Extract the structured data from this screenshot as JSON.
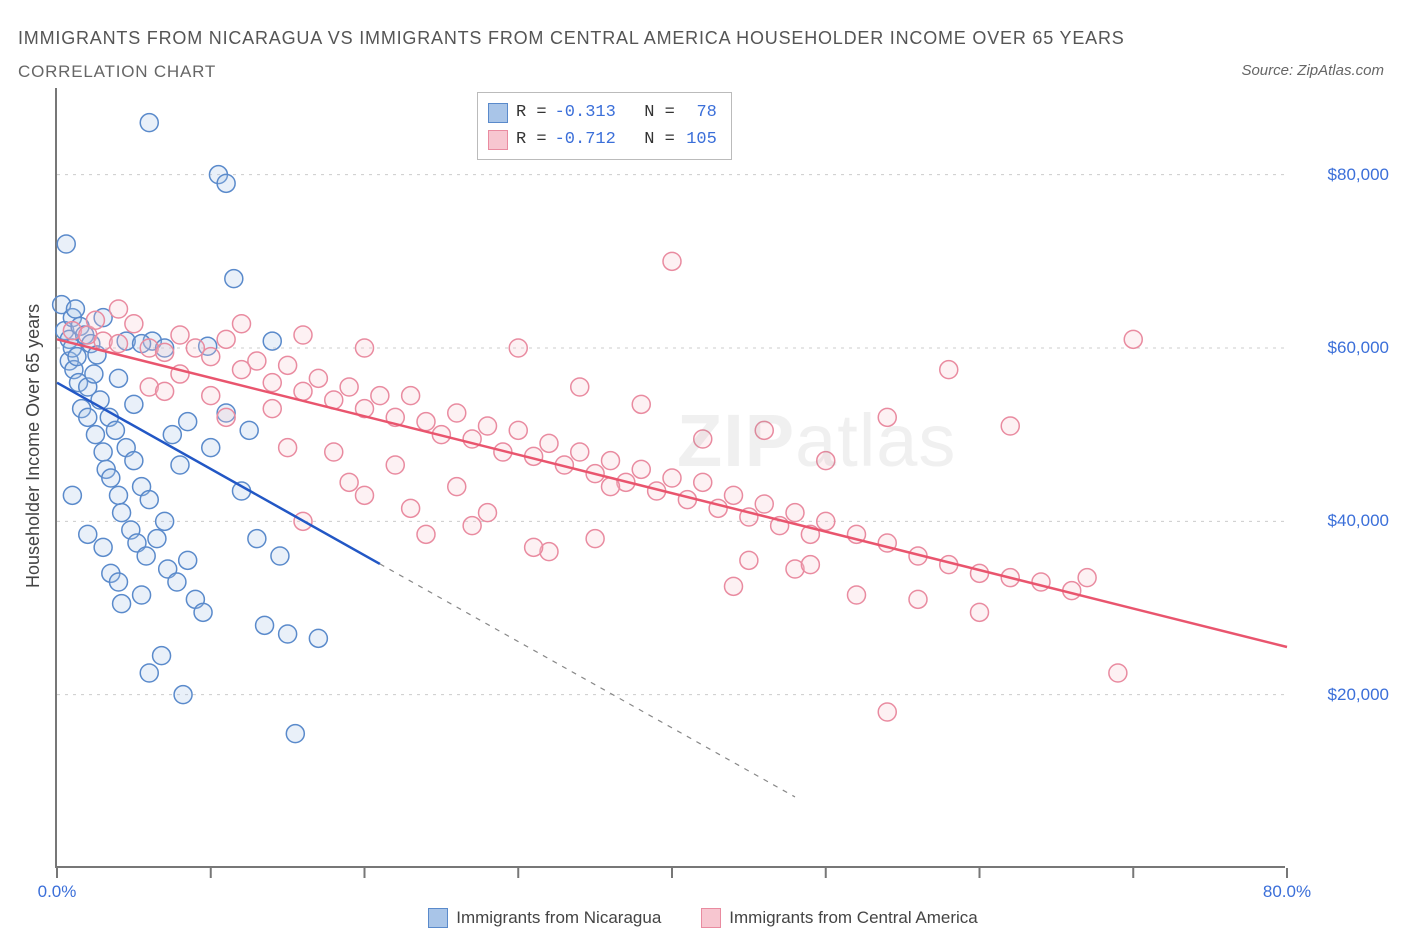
{
  "title_main": "IMMIGRANTS FROM NICARAGUA VS IMMIGRANTS FROM CENTRAL AMERICA HOUSEHOLDER INCOME OVER 65 YEARS",
  "title_sub": "CORRELATION CHART",
  "source": "Source: ZipAtlas.com",
  "y_axis_title": "Householder Income Over 65 years",
  "watermark_a": "ZIP",
  "watermark_b": "atlas",
  "chart": {
    "type": "scatter",
    "x_domain": [
      0,
      80
    ],
    "y_domain": [
      0,
      90000
    ],
    "x_ticks": [
      0,
      10,
      20,
      30,
      40,
      50,
      60,
      70,
      80
    ],
    "x_tick_labels_shown": {
      "0": "0.0%",
      "80": "80.0%"
    },
    "y_ticks": [
      20000,
      40000,
      60000,
      80000
    ],
    "y_tick_labels": {
      "20000": "$20,000",
      "40000": "$40,000",
      "60000": "$60,000",
      "80000": "$80,000"
    },
    "grid_color": "#cccccc",
    "background": "#ffffff",
    "marker_radius": 9,
    "marker_stroke_width": 1.5,
    "marker_fill_opacity": 0.25,
    "trend_width": 2.5,
    "trend_dash_ext": "5,6",
    "series": [
      {
        "key": "nicaragua",
        "label": "Immigrants from Nicaragua",
        "color_stroke": "#5a8acb",
        "color_fill": "#a9c5e8",
        "trend_color": "#2257c5",
        "R": "-0.313",
        "N": "78",
        "trend": {
          "x1": 0,
          "y1": 56000,
          "x2": 48,
          "y2": 8200,
          "solid_max_x": 21
        },
        "points": [
          [
            0.3,
            65000
          ],
          [
            0.5,
            62000
          ],
          [
            0.6,
            72000
          ],
          [
            0.8,
            61000
          ],
          [
            0.8,
            58500
          ],
          [
            1.0,
            63500
          ],
          [
            1.0,
            60000
          ],
          [
            1.1,
            57500
          ],
          [
            1.2,
            64500
          ],
          [
            1.3,
            59000
          ],
          [
            1.4,
            56000
          ],
          [
            1.5,
            62500
          ],
          [
            1.6,
            53000
          ],
          [
            1.8,
            61500
          ],
          [
            2.0,
            55500
          ],
          [
            2.0,
            52000
          ],
          [
            2.2,
            60500
          ],
          [
            2.4,
            57000
          ],
          [
            2.5,
            50000
          ],
          [
            2.6,
            59200
          ],
          [
            2.8,
            54000
          ],
          [
            3.0,
            48000
          ],
          [
            3.0,
            63500
          ],
          [
            3.2,
            46000
          ],
          [
            3.4,
            52000
          ],
          [
            3.5,
            45000
          ],
          [
            3.8,
            50500
          ],
          [
            4.0,
            43000
          ],
          [
            4.0,
            56500
          ],
          [
            4.2,
            41000
          ],
          [
            4.5,
            48500
          ],
          [
            4.8,
            39000
          ],
          [
            5.0,
            47000
          ],
          [
            5.2,
            37500
          ],
          [
            5.5,
            44000
          ],
          [
            5.8,
            36000
          ],
          [
            6.0,
            42500
          ],
          [
            6.0,
            86000
          ],
          [
            6.5,
            38000
          ],
          [
            7.0,
            40000
          ],
          [
            7.2,
            34500
          ],
          [
            7.5,
            50000
          ],
          [
            7.8,
            33000
          ],
          [
            8.0,
            46500
          ],
          [
            8.5,
            35500
          ],
          [
            9.0,
            31000
          ],
          [
            9.5,
            29500
          ],
          [
            10.0,
            48500
          ],
          [
            10.5,
            80000
          ],
          [
            11.0,
            79000
          ],
          [
            11.0,
            52500
          ],
          [
            11.5,
            68000
          ],
          [
            12.0,
            43500
          ],
          [
            12.5,
            50500
          ],
          [
            13.0,
            38000
          ],
          [
            13.5,
            28000
          ],
          [
            14.0,
            60800
          ],
          [
            14.5,
            36000
          ],
          [
            15.0,
            27000
          ],
          [
            3.5,
            34000
          ],
          [
            4.2,
            30500
          ],
          [
            5.0,
            53500
          ],
          [
            6.0,
            22500
          ],
          [
            6.8,
            24500
          ],
          [
            8.2,
            20000
          ],
          [
            15.5,
            15500
          ],
          [
            17.0,
            26500
          ],
          [
            8.5,
            51500
          ],
          [
            2.0,
            38500
          ],
          [
            3.0,
            37000
          ],
          [
            4.5,
            60800
          ],
          [
            6.2,
            60800
          ],
          [
            5.5,
            60500
          ],
          [
            9.8,
            60200
          ],
          [
            7.0,
            60000
          ],
          [
            1.0,
            43000
          ],
          [
            4.0,
            33000
          ],
          [
            5.5,
            31500
          ]
        ]
      },
      {
        "key": "centralamerica",
        "label": "Immigrants from Central America",
        "color_stroke": "#e98ba0",
        "color_fill": "#f7c6d0",
        "trend_color": "#e9556e",
        "R": "-0.712",
        "N": "105",
        "trend": {
          "x1": 0,
          "y1": 61000,
          "x2": 80,
          "y2": 25500,
          "solid_max_x": 80
        },
        "points": [
          [
            1.0,
            62000
          ],
          [
            2.0,
            61500
          ],
          [
            2.5,
            63200
          ],
          [
            3.0,
            60800
          ],
          [
            4.0,
            60500
          ],
          [
            5.0,
            62800
          ],
          [
            6.0,
            60000
          ],
          [
            7.0,
            59500
          ],
          [
            8.0,
            61500
          ],
          [
            9.0,
            60000
          ],
          [
            10.0,
            59000
          ],
          [
            11.0,
            61000
          ],
          [
            12.0,
            57500
          ],
          [
            13.0,
            58500
          ],
          [
            14.0,
            56000
          ],
          [
            15.0,
            58000
          ],
          [
            16.0,
            55000
          ],
          [
            17.0,
            56500
          ],
          [
            18.0,
            54000
          ],
          [
            19.0,
            55500
          ],
          [
            20.0,
            53000
          ],
          [
            21.0,
            54500
          ],
          [
            22.0,
            52000
          ],
          [
            23.0,
            54500
          ],
          [
            24.0,
            51500
          ],
          [
            25.0,
            50000
          ],
          [
            26.0,
            52500
          ],
          [
            27.0,
            49500
          ],
          [
            28.0,
            51000
          ],
          [
            29.0,
            48000
          ],
          [
            30.0,
            50500
          ],
          [
            31.0,
            47500
          ],
          [
            32.0,
            49000
          ],
          [
            33.0,
            46500
          ],
          [
            34.0,
            48000
          ],
          [
            35.0,
            45500
          ],
          [
            36.0,
            47000
          ],
          [
            37.0,
            44500
          ],
          [
            38.0,
            46000
          ],
          [
            39.0,
            43500
          ],
          [
            40.0,
            45000
          ],
          [
            41.0,
            42500
          ],
          [
            42.0,
            44500
          ],
          [
            43.0,
            41500
          ],
          [
            44.0,
            43000
          ],
          [
            45.0,
            40500
          ],
          [
            46.0,
            42000
          ],
          [
            47.0,
            39500
          ],
          [
            48.0,
            41000
          ],
          [
            49.0,
            38500
          ],
          [
            50.0,
            40000
          ],
          [
            52.0,
            38500
          ],
          [
            54.0,
            37500
          ],
          [
            56.0,
            36000
          ],
          [
            58.0,
            35000
          ],
          [
            60.0,
            34000
          ],
          [
            62.0,
            33500
          ],
          [
            64.0,
            33000
          ],
          [
            66.0,
            32000
          ],
          [
            70.0,
            61000
          ],
          [
            16.0,
            40000
          ],
          [
            20.0,
            43000
          ],
          [
            24.0,
            38500
          ],
          [
            28.0,
            41000
          ],
          [
            32.0,
            36500
          ],
          [
            36.0,
            44000
          ],
          [
            40.0,
            70000
          ],
          [
            44.0,
            32500
          ],
          [
            48.0,
            34500
          ],
          [
            52.0,
            31500
          ],
          [
            56.0,
            31000
          ],
          [
            60.0,
            29500
          ],
          [
            30.0,
            60000
          ],
          [
            34.0,
            55500
          ],
          [
            38.0,
            53500
          ],
          [
            42.0,
            49500
          ],
          [
            46.0,
            50500
          ],
          [
            50.0,
            47000
          ],
          [
            54.0,
            52000
          ],
          [
            54.0,
            18000
          ],
          [
            58.0,
            57500
          ],
          [
            62.0,
            51000
          ],
          [
            67.0,
            33500
          ],
          [
            69.0,
            22500
          ],
          [
            6.0,
            55500
          ],
          [
            10.0,
            54500
          ],
          [
            14.0,
            53000
          ],
          [
            18.0,
            48000
          ],
          [
            22.0,
            46500
          ],
          [
            26.0,
            44000
          ],
          [
            12.0,
            62800
          ],
          [
            16.0,
            61500
          ],
          [
            20.0,
            60000
          ],
          [
            8.0,
            57000
          ],
          [
            4.0,
            64500
          ],
          [
            45.0,
            35500
          ],
          [
            49.0,
            35000
          ],
          [
            35.0,
            38000
          ],
          [
            31.0,
            37000
          ],
          [
            27.0,
            39500
          ],
          [
            23.0,
            41500
          ],
          [
            19.0,
            44500
          ],
          [
            15.0,
            48500
          ],
          [
            11.0,
            52000
          ],
          [
            7.0,
            55000
          ]
        ]
      }
    ]
  }
}
